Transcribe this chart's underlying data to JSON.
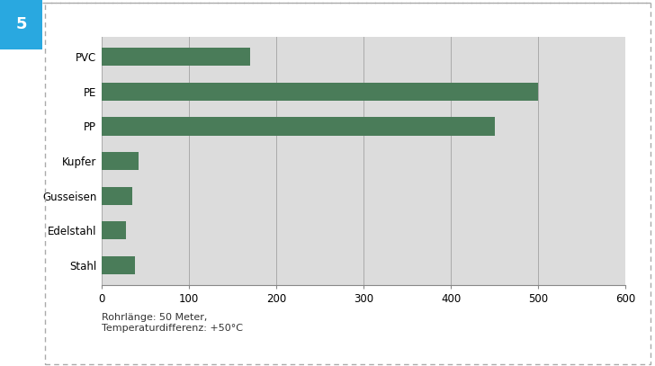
{
  "categories": [
    "Stahl",
    "Edelstahl",
    "Gusseisen",
    "Kupfer",
    "PP",
    "PE",
    "PVC"
  ],
  "values": [
    38,
    28,
    35,
    42,
    450,
    500,
    170
  ],
  "bar_color": "#4a7c59",
  "chart_bg_color": "#dcdcdc",
  "figure_bg_color": "#ffffff",
  "xlim": [
    0,
    600
  ],
  "xticks": [
    0,
    100,
    200,
    300,
    400,
    500,
    600
  ],
  "annotation": "Rohrlänge: 50 Meter,\nTemperaturdifferenz: +50°C",
  "figure_number": "5",
  "badge_color": "#29a8e0",
  "grid_color": "#aaaaaa",
  "spine_color": "#888888",
  "bar_height": 0.52
}
